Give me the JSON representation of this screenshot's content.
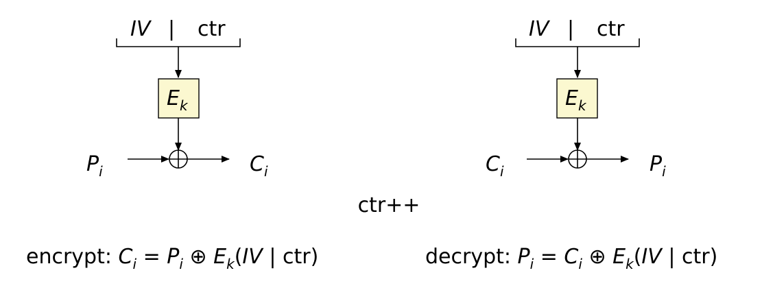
{
  "left_block": {
    "iv_label": "IV",
    "separator": "|",
    "ctr_label": "ctr",
    "cipher_label": "E",
    "cipher_sub": "k",
    "input_label": "P",
    "input_sub": "i",
    "output_label": "C",
    "output_sub": "i"
  },
  "right_block": {
    "iv_label": "IV",
    "separator": "|",
    "ctr_label": "ctr",
    "cipher_label": "E",
    "cipher_sub": "k",
    "input_label": "C",
    "input_sub": "i",
    "output_label": "P",
    "output_sub": "i"
  },
  "counter_note": "ctr++",
  "encrypt_formula": {
    "prefix": "encrypt: ",
    "lhs": "C",
    "lhs_sub": "i",
    "eq": " = ",
    "a": "P",
    "a_sub": "i",
    "op": " ⊕ ",
    "fn": "E",
    "fn_sub": "k",
    "arg_open": "(",
    "iv": "IV",
    "bar": " | ",
    "ctr": "ctr",
    "arg_close": ")"
  },
  "decrypt_formula": {
    "prefix": "decrypt: ",
    "lhs": "P",
    "lhs_sub": "i",
    "eq": " = ",
    "a": "C",
    "a_sub": "i",
    "op": " ⊕ ",
    "fn": "E",
    "fn_sub": "k",
    "arg_open": "(",
    "iv": "IV",
    "bar": " | ",
    "ctr": "ctr",
    "arg_close": ")"
  }
}
